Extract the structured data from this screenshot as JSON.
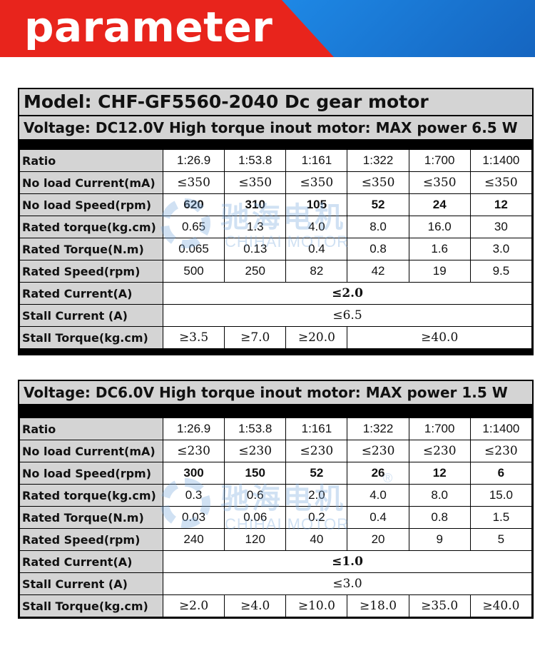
{
  "banner": {
    "title": "parameter"
  },
  "watermark": {
    "cn": "驰海电机",
    "en": "CHIHAI MOTOR",
    "reg": "®"
  },
  "block1": {
    "model": "Model: CHF-GF5560-2040 Dc gear motor",
    "voltage": "Voltage: DC12.0V High torque inout motor: MAX power 6.5 W",
    "labels": {
      "ratio": "Ratio",
      "noload_current": "No load Current(mA)",
      "noload_speed": "No load Speed(rpm)",
      "rated_torque_kg": "Rated torque(kg.cm)",
      "rated_torque_nm": "Rated Torque(N.m)",
      "rated_speed": "Rated Speed(rpm)",
      "rated_current": "Rated Current(A)",
      "stall_current": "Stall Current (A)",
      "stall_torque": "Stall Torque(kg.cm)"
    },
    "ratio": [
      "1:26.9",
      "1:53.8",
      "1:161",
      "1:322",
      "1:700",
      "1:1400"
    ],
    "noload_current": [
      "≤350",
      "≤350",
      "≤350",
      "≤350",
      "≤350",
      "≤350"
    ],
    "noload_speed": [
      "620",
      "310",
      "105",
      "52",
      "24",
      "12"
    ],
    "rated_torque_kg": [
      "0.65",
      "1.3",
      "4.0",
      "8.0",
      "16.0",
      "30"
    ],
    "rated_torque_nm": [
      "0.065",
      "0.13",
      "0.4",
      "0.8",
      "1.6",
      "3.0"
    ],
    "rated_speed": [
      "500",
      "250",
      "82",
      "42",
      "19",
      "9.5"
    ],
    "rated_current": "≤2.0",
    "stall_current": "≤6.5",
    "stall_torque": [
      "≥3.5",
      "≥7.0",
      "≥20.0",
      "≥40.0"
    ]
  },
  "block2": {
    "voltage": "Voltage: DC6.0V High torque inout motor: MAX power 1.5 W",
    "labels": {
      "ratio": "Ratio",
      "noload_current": "No load Current(mA)",
      "noload_speed": "No load Speed(rpm)",
      "rated_torque_kg": "Rated torque(kg.cm)",
      "rated_torque_nm": "Rated Torque(N.m)",
      "rated_speed": "Rated Speed(rpm)",
      "rated_current": "Rated Current(A)",
      "stall_current": "Stall Current (A)",
      "stall_torque": "Stall Torque(kg.cm)"
    },
    "ratio": [
      "1:26.9",
      "1:53.8",
      "1:161",
      "1:322",
      "1:700",
      "1:1400"
    ],
    "noload_current": [
      "≤230",
      "≤230",
      "≤230",
      "≤230",
      "≤230",
      "≤230"
    ],
    "noload_speed": [
      "300",
      "150",
      "52",
      "26",
      "12",
      "6"
    ],
    "rated_torque_kg": [
      "0.3",
      "0.6",
      "2.0",
      "4.0",
      "8.0",
      "15.0"
    ],
    "rated_torque_nm": [
      "0.03",
      "0.06",
      "0.2",
      "0.4",
      "0.8",
      "1.5"
    ],
    "rated_speed": [
      "240",
      "120",
      "40",
      "20",
      "9",
      "5"
    ],
    "rated_current": "≤1.0",
    "stall_current": "≤3.0",
    "stall_torque": [
      "≥2.0",
      "≥4.0",
      "≥10.0",
      "≥18.0",
      "≥35.0",
      "≥40.0"
    ]
  }
}
